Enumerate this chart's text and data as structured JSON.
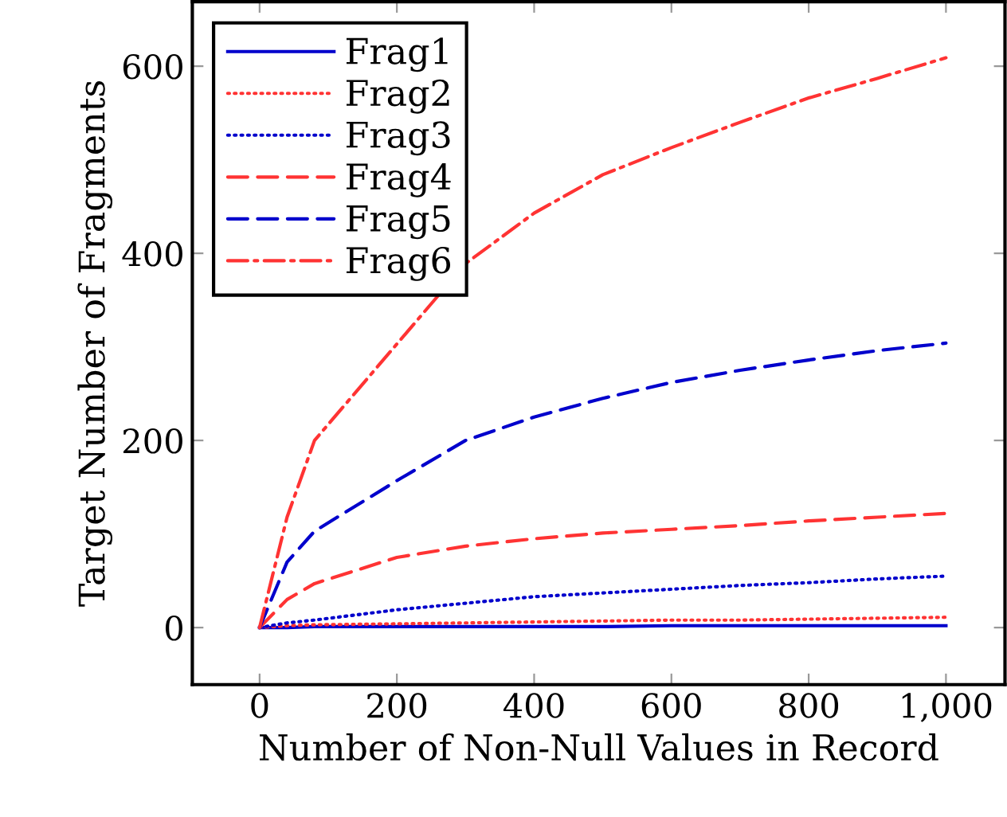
{
  "chart_data": {
    "type": "line",
    "xlabel": "Number of Non-Null Values in Record",
    "ylabel": "Target Number of Fragments",
    "x": [
      0,
      40,
      80,
      200,
      300,
      400,
      500,
      600,
      700,
      800,
      900,
      1000
    ],
    "series": [
      {
        "name": "Frag1",
        "color": "#0000cc",
        "line_style": "solid",
        "values": [
          0,
          0,
          1,
          1,
          1,
          1,
          1,
          2,
          2,
          2,
          2,
          2
        ]
      },
      {
        "name": "Frag2",
        "color": "#ff3333",
        "line_style": "dotted",
        "values": [
          0,
          2,
          3,
          4,
          5,
          6,
          7,
          8,
          8,
          9,
          10,
          11
        ]
      },
      {
        "name": "Frag3",
        "color": "#0000cc",
        "line_style": "dotted",
        "values": [
          0,
          5,
          8,
          19,
          26,
          33,
          37,
          41,
          45,
          48,
          52,
          55
        ]
      },
      {
        "name": "Frag4",
        "color": "#ff3333",
        "line_style": "dashed",
        "values": [
          0,
          30,
          47,
          75,
          87,
          95,
          101,
          105,
          109,
          114,
          118,
          122
        ]
      },
      {
        "name": "Frag5",
        "color": "#0000cc",
        "line_style": "dashed",
        "values": [
          0,
          70,
          103,
          157,
          200,
          225,
          245,
          262,
          275,
          286,
          296,
          304
        ]
      },
      {
        "name": "Frag6",
        "color": "#ff3333",
        "line_style": "dashdot",
        "values": [
          0,
          118,
          200,
          null,
          389,
          443,
          484,
          513,
          540,
          566,
          587,
          609
        ]
      }
    ],
    "xlim": [
      -98,
      1086
    ],
    "ylim": [
      -61,
      669
    ],
    "xticks": [
      0,
      200,
      400,
      600,
      800,
      {
        "value": 1000,
        "label": "1,000"
      }
    ],
    "yticks": [
      0,
      200,
      400,
      600
    ],
    "grid": false,
    "legend": "top left"
  }
}
